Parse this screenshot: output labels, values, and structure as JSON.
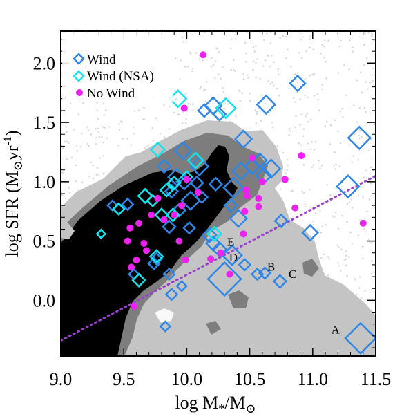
{
  "chart_data": {
    "type": "scatter",
    "title": "",
    "xlabel_main": "log M",
    "xlabel_sub1": "*",
    "xlabel_div": "/M",
    "xlabel_sub2": "⊙",
    "ylabel_main": "log SFR (M",
    "ylabel_sub": "⊙",
    "ylabel_unit": "yr",
    "ylabel_sup": "-1",
    "ylabel_close": ")",
    "xlim": [
      9.0,
      11.5
    ],
    "ylim": [
      -0.47,
      2.27
    ],
    "xticks": [
      "9.0",
      "9.5",
      "10.0",
      "10.5",
      "11.0",
      "11.5"
    ],
    "yticks": [
      "0.0",
      "0.5",
      "1.0",
      "1.5",
      "2.0"
    ],
    "colors": {
      "wind": "#2e86e6",
      "wind_nsa": "#12e4ee",
      "no_wind": "#ee22ee",
      "fit_line": "#9a3fd0",
      "contour_light": "#c4c4c4",
      "contour_mid": "#7d7d7d",
      "contour_dense": "#000000",
      "background_points": "#d9d9d9"
    },
    "legend": {
      "position": "top-left",
      "entries": [
        {
          "label": "Wind",
          "symbol": "diamond-open",
          "color": "#2e86e6"
        },
        {
          "label": "Wind (NSA)",
          "symbol": "diamond-open",
          "color": "#12e4ee"
        },
        {
          "label": "No Wind",
          "symbol": "circle-filled",
          "color": "#ee22ee"
        }
      ]
    },
    "fit_line": {
      "style": "dotted",
      "points": [
        [
          9.0,
          -0.34
        ],
        [
          11.5,
          1.05
        ]
      ]
    },
    "annotations": [
      {
        "text": "E",
        "x": 10.35,
        "y": 0.46
      },
      {
        "text": "D",
        "x": 10.37,
        "y": 0.33
      },
      {
        "text": "B",
        "x": 10.67,
        "y": 0.25
      },
      {
        "text": "C",
        "x": 10.84,
        "y": 0.19
      },
      {
        "text": "A",
        "x": 11.18,
        "y": -0.28
      }
    ],
    "series": [
      {
        "name": "Wind",
        "marker": "diamond-open",
        "points": [
          [
            11.37,
            1.37,
            16
          ],
          [
            11.28,
            0.96,
            16
          ],
          [
            11.38,
            -0.32,
            22
          ],
          [
            10.88,
            1.83,
            11
          ],
          [
            10.63,
            1.65,
            13
          ],
          [
            10.98,
            0.57,
            11
          ],
          [
            10.67,
            1.11,
            13
          ],
          [
            10.61,
            1.05,
            11
          ],
          [
            10.45,
            1.36,
            12
          ],
          [
            10.43,
            1.09,
            12
          ],
          [
            10.52,
            1.13,
            11
          ],
          [
            10.58,
            1.18,
            10
          ],
          [
            10.37,
            0.95,
            14
          ],
          [
            10.41,
            0.69,
            12
          ],
          [
            10.35,
            0.8,
            9
          ],
          [
            10.36,
            0.38,
            14
          ],
          [
            10.3,
            0.18,
            24
          ],
          [
            10.26,
            0.43,
            10
          ],
          [
            10.21,
            0.48,
            10
          ],
          [
            10.18,
            0.55,
            10
          ],
          [
            10.46,
            0.3,
            8
          ],
          [
            10.56,
            0.22,
            8
          ],
          [
            10.62,
            0.23,
            8
          ],
          [
            10.74,
            0.16,
            9
          ],
          [
            10.75,
            0.67,
            9
          ],
          [
            10.21,
            1.64,
            12
          ],
          [
            10.14,
            1.6,
            9
          ],
          [
            10.26,
            1.57,
            9
          ],
          [
            10.1,
            1.13,
            13
          ],
          [
            9.97,
            1.26,
            12
          ],
          [
            9.92,
            1.04,
            12
          ],
          [
            9.98,
            1.0,
            11
          ],
          [
            10.03,
            0.84,
            13
          ],
          [
            9.94,
            0.76,
            9
          ],
          [
            9.88,
            0.92,
            9
          ],
          [
            9.82,
            1.13,
            9
          ],
          [
            9.86,
            0.62,
            9
          ],
          [
            10.02,
            0.61,
            8
          ],
          [
            10.12,
            0.87,
            8
          ],
          [
            9.76,
            0.35,
            8
          ],
          [
            9.74,
            0.31,
            8
          ],
          [
            9.86,
            0.22,
            8
          ],
          [
            9.88,
            0.05,
            8
          ],
          [
            9.83,
            -0.22,
            7
          ],
          [
            9.58,
            0.22,
            7
          ],
          [
            9.53,
            0.81,
            8
          ],
          [
            9.41,
            0.8,
            7
          ],
          [
            10.23,
            0.98,
            9
          ],
          [
            10.08,
            0.99,
            9
          ],
          [
            9.96,
            0.12,
            7
          ]
        ]
      },
      {
        "name": "Wind (NSA)",
        "marker": "diamond-open",
        "points": [
          [
            10.31,
            1.62,
            14
          ],
          [
            9.93,
            1.7,
            12
          ],
          [
            10.07,
            1.18,
            11
          ],
          [
            9.77,
            1.27,
            10
          ],
          [
            9.67,
            0.88,
            10
          ],
          [
            9.73,
            0.84,
            8
          ],
          [
            9.84,
            0.93,
            9
          ],
          [
            9.9,
            0.99,
            9
          ],
          [
            9.8,
            0.72,
            9
          ],
          [
            9.89,
            0.72,
            9
          ],
          [
            9.76,
            0.37,
            9
          ],
          [
            9.62,
            0.17,
            9
          ],
          [
            9.32,
            0.56,
            6
          ],
          [
            9.46,
            0.77,
            8
          ],
          [
            10.22,
            0.56,
            10
          ],
          [
            10.0,
            1.04,
            8
          ]
        ]
      },
      {
        "name": "No Wind",
        "marker": "circle-filled",
        "points": [
          [
            10.13,
            2.07
          ],
          [
            9.98,
            1.62
          ],
          [
            10.52,
            1.2
          ],
          [
            10.91,
            1.22
          ],
          [
            10.78,
            1.02
          ],
          [
            10.6,
            1.0
          ],
          [
            10.47,
            0.93
          ],
          [
            10.48,
            0.88
          ],
          [
            10.57,
            0.86
          ],
          [
            10.57,
            0.79
          ],
          [
            10.86,
            0.78
          ],
          [
            11.4,
            0.65
          ],
          [
            10.45,
            0.56
          ],
          [
            10.0,
            1.02
          ],
          [
            9.96,
            0.8
          ],
          [
            9.9,
            0.72
          ],
          [
            9.82,
            0.68
          ],
          [
            9.72,
            0.72
          ],
          [
            9.62,
            0.65
          ],
          [
            9.55,
            0.61
          ],
          [
            9.53,
            0.5
          ],
          [
            9.66,
            0.48
          ],
          [
            9.68,
            0.42
          ],
          [
            9.6,
            0.34
          ],
          [
            9.56,
            0.28
          ],
          [
            9.99,
            0.34
          ],
          [
            10.27,
            0.4
          ],
          [
            10.34,
            0.22
          ],
          [
            10.09,
            0.91
          ],
          [
            9.94,
            0.5
          ],
          [
            9.58,
            -0.05
          ],
          [
            10.19,
            0.35
          ],
          [
            10.46,
            0.75
          ],
          [
            9.77,
            0.86
          ]
        ]
      }
    ]
  }
}
